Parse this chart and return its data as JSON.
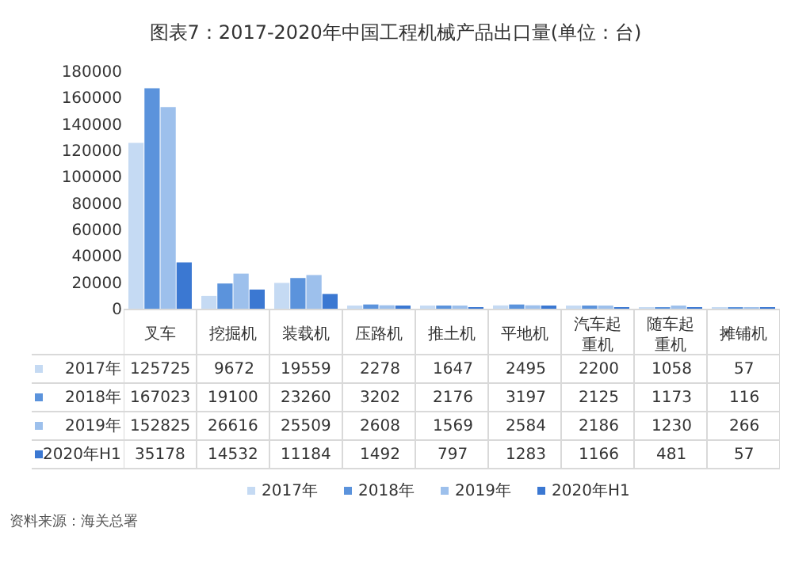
{
  "chart_data": {
    "type": "bar",
    "title": "图表7：2017-2020年中国工程机械产品出口量(单位：台)",
    "categories": [
      "叉车",
      "挖掘机",
      "装载机",
      "压路机",
      "推土机",
      "平地机",
      "汽车起重机",
      "随车起重机",
      "摊铺机"
    ],
    "series": [
      {
        "name": "2017年",
        "color": "#c5daf3",
        "values": [
          125725,
          9672,
          19559,
          2278,
          1647,
          2495,
          2200,
          1058,
          57
        ]
      },
      {
        "name": "2018年",
        "color": "#5b93dc",
        "values": [
          167023,
          19100,
          23260,
          3202,
          2176,
          3197,
          2125,
          1173,
          116
        ]
      },
      {
        "name": "2019年",
        "color": "#9dc0ec",
        "values": [
          152825,
          26616,
          25509,
          2608,
          1569,
          2584,
          2186,
          1230,
          266
        ]
      },
      {
        "name": "2020年H1",
        "color": "#3b78d2",
        "values": [
          35178,
          14532,
          11184,
          1492,
          797,
          1283,
          1166,
          481,
          57
        ]
      }
    ],
    "ylim": [
      0,
      180000
    ],
    "yticks": [
      0,
      20000,
      40000,
      60000,
      80000,
      100000,
      120000,
      140000,
      160000,
      180000
    ],
    "grid": false,
    "legend": "bottom",
    "data_labels": true,
    "annotations": [
      "资料来源：海关总署"
    ]
  }
}
